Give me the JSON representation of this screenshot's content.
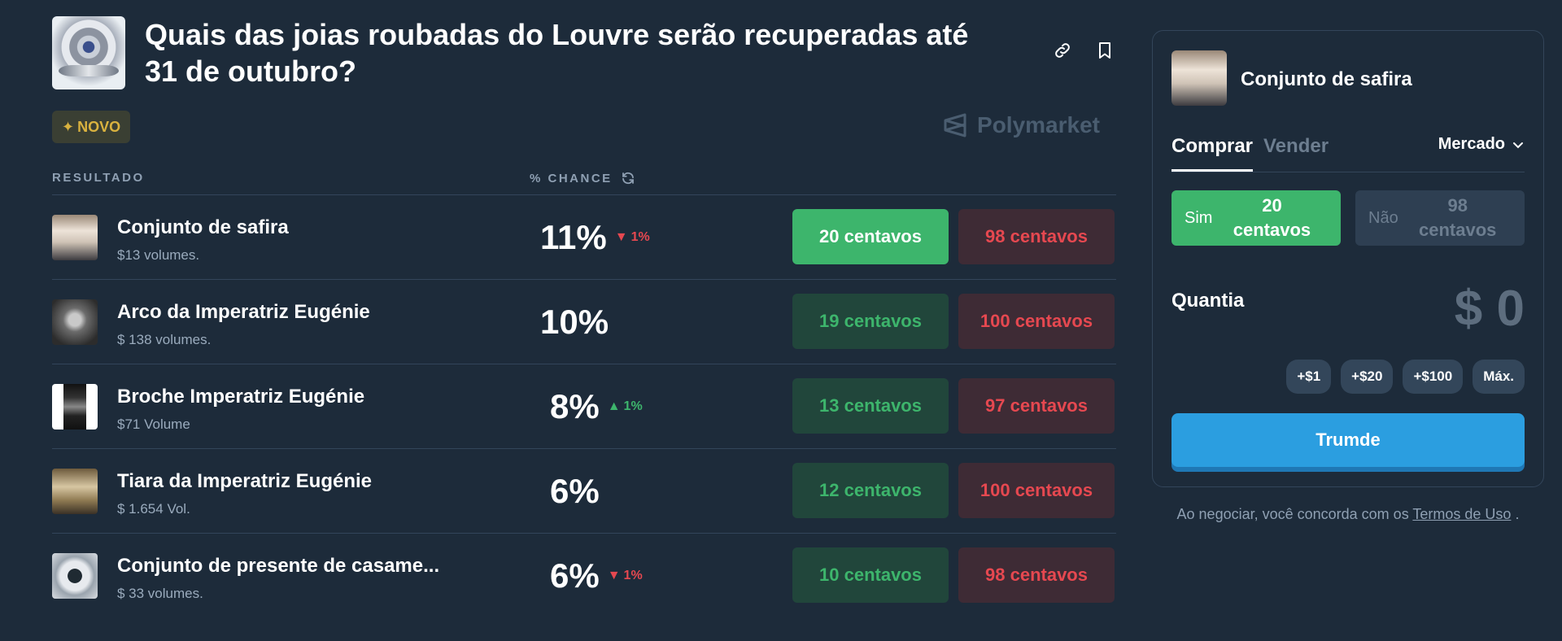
{
  "market": {
    "title": "Quais das joias roubadas do Louvre serão recuperadas até 31 de outubro?",
    "badge": "NOVO",
    "brand": "Polymarket"
  },
  "table": {
    "col_result": "RESULTADO",
    "col_chance": "% CHANCE",
    "rows": [
      {
        "name": "Conjunto de safira",
        "volume": "$13 volumes.",
        "chance": "11%",
        "delta": "1%",
        "delta_dir": "down",
        "yes": "20 centavos",
        "no": "98 centavos"
      },
      {
        "name": "Arco da Imperatriz Eugénie",
        "volume": "$ 138 volumes.",
        "chance": "10%",
        "delta": "",
        "delta_dir": "none",
        "yes": "19 centavos",
        "no": "100 centavos"
      },
      {
        "name": "Broche Imperatriz Eugénie",
        "volume": "$71 Volume",
        "chance": "8%",
        "delta": "1%",
        "delta_dir": "up",
        "yes": "13 centavos",
        "no": "97 centavos"
      },
      {
        "name": "Tiara da Imperatriz Eugénie",
        "volume": "$ 1.654 Vol.",
        "chance": "6%",
        "delta": "",
        "delta_dir": "none",
        "yes": "12 centavos",
        "no": "100 centavos"
      },
      {
        "name": "Conjunto de presente de casame...",
        "volume": "$ 33 volumes.",
        "chance": "6%",
        "delta": "1%",
        "delta_dir": "down",
        "yes": "10 centavos",
        "no": "98 centavos"
      }
    ]
  },
  "panel": {
    "title": "Conjunto de safira",
    "tab_buy": "Comprar",
    "tab_sell": "Vender",
    "order_type": "Mercado",
    "yes_label": "Sim",
    "yes_value": "20 centavos",
    "no_label": "Não",
    "no_value": "98 centavos",
    "quantity_label": "Quantia",
    "amount": "$ 0",
    "add_buttons": [
      "+$1",
      "+$20",
      "+$100",
      "Máx."
    ],
    "trade_label": "Trumde"
  },
  "terms": {
    "prefix": "Ao negociar, você concorda com os",
    "link": "Termos de Uso",
    "suffix": "."
  },
  "colors": {
    "background": "#1d2b3a",
    "yes_green": "#3db56c",
    "no_red": "#e64850",
    "trade_blue": "#2b9ee0",
    "badge_gold": "#d9b23f"
  }
}
